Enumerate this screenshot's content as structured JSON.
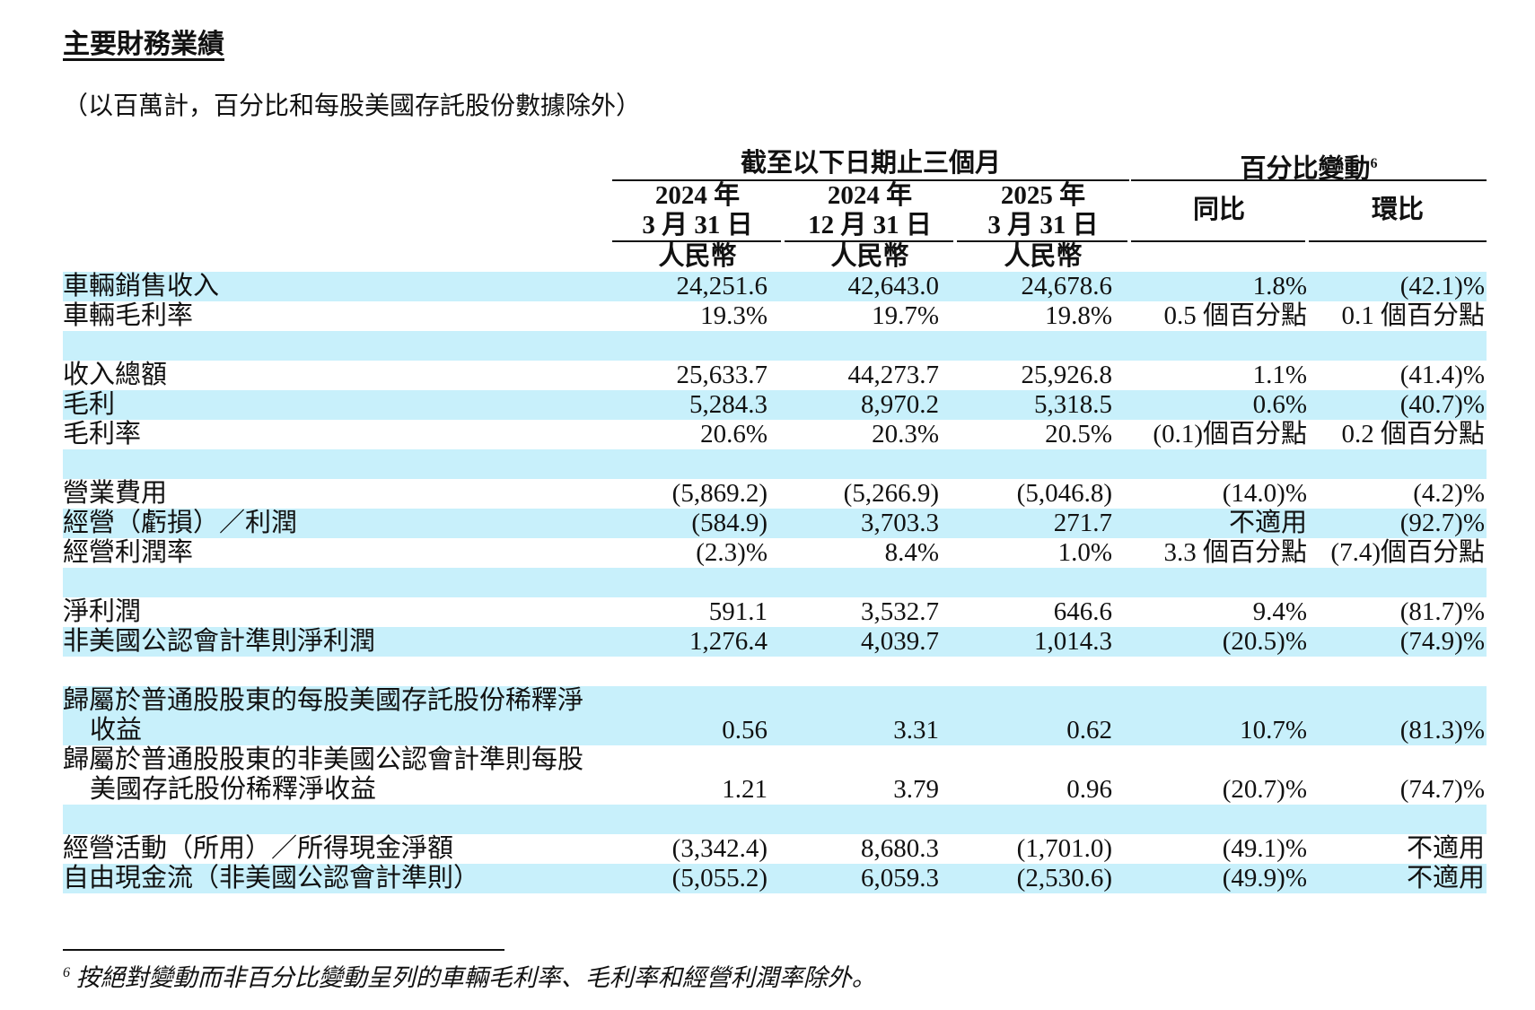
{
  "section_title": "主要財務業績",
  "subtitle": "（以百萬計，百分比和每股美國存託股份數據除外）",
  "header": {
    "group1": "截至以下日期止三個月",
    "group2": "百分比變動",
    "group2_footnote": "6",
    "columns": [
      {
        "line1": "2024 年",
        "line2": "3 月 31 日",
        "currency": "人民幣"
      },
      {
        "line1": "2024 年",
        "line2": "12 月 31 日",
        "currency": "人民幣"
      },
      {
        "line1": "2025 年",
        "line2": "3 月 31 日",
        "currency": "人民幣"
      }
    ],
    "yoy": "同比",
    "qoq": "環比"
  },
  "rows": [
    {
      "label": "車輛銷售收入",
      "values": [
        "24,251.6",
        "42,643.0",
        "24,678.6",
        "1.8%",
        "(42.1)%"
      ]
    },
    {
      "label": "車輛毛利率",
      "values": [
        "19.3%",
        "19.7%",
        "19.8%",
        "0.5 個百分點",
        "0.1 個百分點"
      ]
    },
    {
      "label": "",
      "values": [
        "",
        "",
        "",
        "",
        ""
      ]
    },
    {
      "label": "收入總額",
      "values": [
        "25,633.7",
        "44,273.7",
        "25,926.8",
        "1.1%",
        "(41.4)%"
      ]
    },
    {
      "label": "毛利",
      "values": [
        "5,284.3",
        "8,970.2",
        "5,318.5",
        "0.6%",
        "(40.7)%"
      ]
    },
    {
      "label": "毛利率",
      "values": [
        "20.6%",
        "20.3%",
        "20.5%",
        "(0.1)個百分點",
        "0.2 個百分點"
      ]
    },
    {
      "label": "",
      "values": [
        "",
        "",
        "",
        "",
        ""
      ]
    },
    {
      "label": "營業費用",
      "values": [
        "(5,869.2)",
        "(5,266.9)",
        "(5,046.8)",
        "(14.0)%",
        "(4.2)%"
      ]
    },
    {
      "label": "經營（虧損）／利潤",
      "values": [
        "(584.9)",
        "3,703.3",
        "271.7",
        "不適用",
        "(92.7)%"
      ]
    },
    {
      "label": "經營利潤率",
      "values": [
        "(2.3)%",
        "8.4%",
        "1.0%",
        "3.3 個百分點",
        "(7.4)個百分點"
      ]
    },
    {
      "label": "",
      "values": [
        "",
        "",
        "",
        "",
        ""
      ]
    },
    {
      "label": "淨利潤",
      "values": [
        "591.1",
        "3,532.7",
        "646.6",
        "9.4%",
        "(81.7)%"
      ]
    },
    {
      "label": "非美國公認會計準則淨利潤",
      "values": [
        "1,276.4",
        "4,039.7",
        "1,014.3",
        "(20.5)%",
        "(74.9)%"
      ]
    },
    {
      "label": "",
      "values": [
        "",
        "",
        "",
        "",
        ""
      ]
    },
    {
      "label": "歸屬於普通股股東的每股美國存託股份稀釋淨",
      "label_cont": "收益",
      "values": [
        "0.56",
        "3.31",
        "0.62",
        "10.7%",
        "(81.3)%"
      ]
    },
    {
      "label": "歸屬於普通股股東的非美國公認會計準則每股",
      "label_cont": "美國存託股份稀釋淨收益",
      "values": [
        "1.21",
        "3.79",
        "0.96",
        "(20.7)%",
        "(74.7)%"
      ]
    },
    {
      "label": "",
      "values": [
        "",
        "",
        "",
        "",
        ""
      ]
    },
    {
      "label": "經營活動（所用）／所得現金淨額",
      "values": [
        "(3,342.4)",
        "8,680.3",
        "(1,701.0)",
        "(49.1)%",
        "不適用"
      ]
    },
    {
      "label": "自由現金流（非美國公認會計準則）",
      "values": [
        "(5,055.2)",
        "6,059.3",
        "(2,530.6)",
        "(49.9)%",
        "不適用"
      ]
    }
  ],
  "footnote": {
    "marker": "6",
    "text": "按絕對變動而非百分比變動呈列的車輛毛利率、毛利率和經營利潤率除外。"
  },
  "colors": {
    "shade": "#c8f0fb"
  }
}
